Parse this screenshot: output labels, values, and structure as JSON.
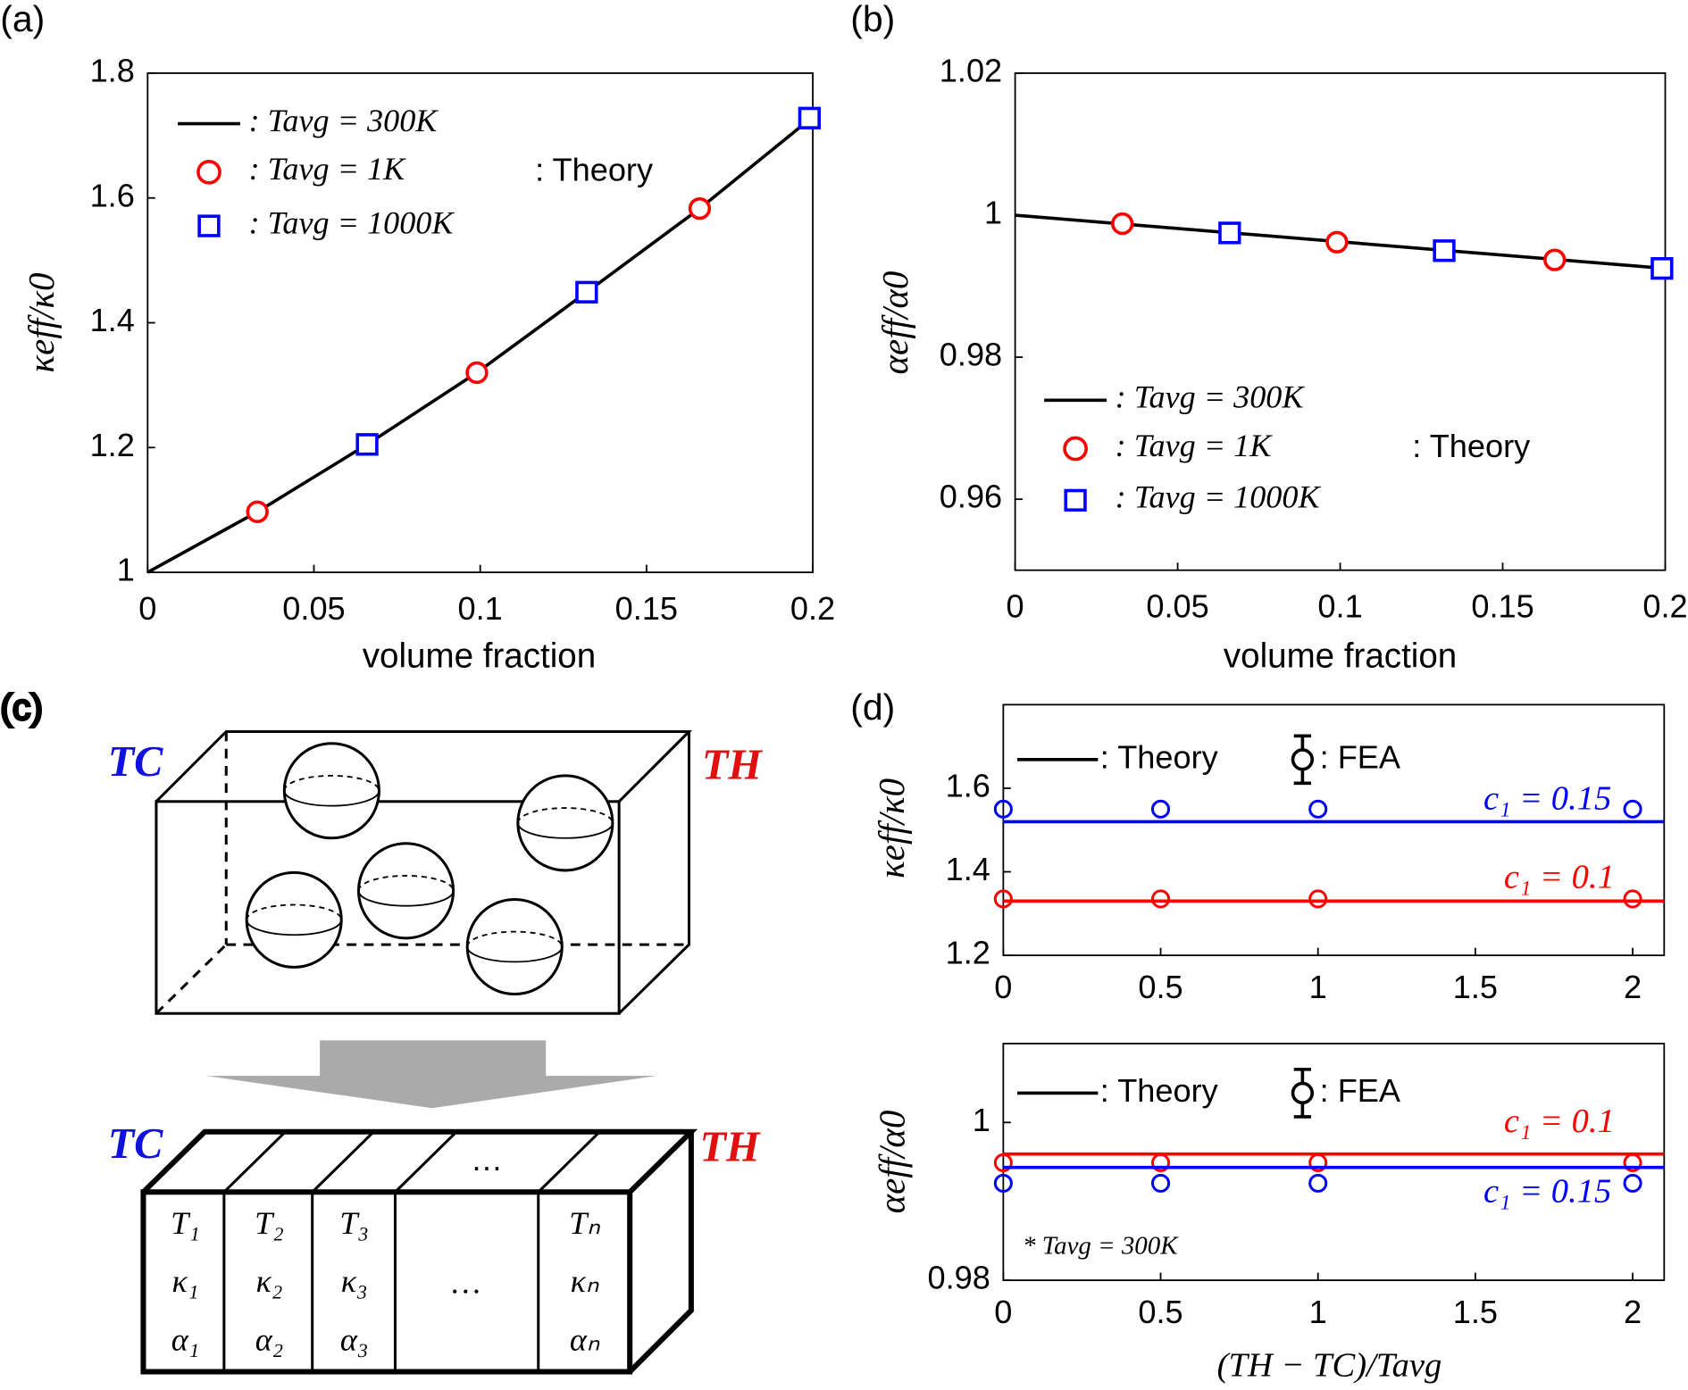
{
  "chart_data": [
    {
      "type": "line",
      "panel": "(a)",
      "xlabel": "volume fraction",
      "ylabel": "κeff/κ0",
      "xlim": [
        0,
        0.2
      ],
      "xticks": [
        0,
        0.05,
        0.1,
        0.15,
        0.2
      ],
      "ylim": [
        1,
        1.8
      ],
      "yticks": [
        1,
        1.2,
        1.4,
        1.6,
        1.8
      ],
      "series": [
        {
          "name": ": Tavg = 300K",
          "color": "#000000",
          "marker": "none",
          "x": [
            0,
            0.033,
            0.066,
            0.099,
            0.132,
            0.166,
            0.2
          ],
          "values": [
            1,
            1.097,
            1.205,
            1.32,
            1.449,
            1.583,
            1.73
          ]
        },
        {
          "name": ": Tavg = 1K",
          "color": "#ff0000",
          "marker": "o",
          "x": [
            0.033,
            0.099,
            0.166
          ],
          "values": [
            1.097,
            1.32,
            1.583
          ]
        },
        {
          "name": ": Tavg = 1000K",
          "color": "#0000ff",
          "marker": "s",
          "x": [
            0.066,
            0.132,
            0.199
          ],
          "values": [
            1.205,
            1.449,
            1.728
          ]
        }
      ],
      "note": ": Theory"
    },
    {
      "type": "line",
      "panel": "(b)",
      "xlabel": "volume fraction",
      "ylabel": "αeff/α0",
      "xlim": [
        0,
        0.2
      ],
      "xticks": [
        0,
        0.05,
        0.1,
        0.15,
        0.2
      ],
      "ylim": [
        0.95,
        1.02
      ],
      "yticks": [
        0.96,
        0.98,
        1,
        1.02
      ],
      "series": [
        {
          "name": ": Tavg = 300K",
          "color": "#000000",
          "marker": "none",
          "x": [
            0,
            0.2
          ],
          "values": [
            1,
            0.9925
          ]
        },
        {
          "name": ": Tavg = 1K",
          "color": "#ff0000",
          "marker": "o",
          "x": [
            0.033,
            0.099,
            0.166
          ],
          "values": [
            0.9988,
            0.9962,
            0.9937
          ]
        },
        {
          "name": ": Tavg = 1000K",
          "color": "#0000ff",
          "marker": "s",
          "x": [
            0.066,
            0.132,
            0.199
          ],
          "values": [
            0.9975,
            0.995,
            0.9925
          ]
        }
      ],
      "note": ": Theory"
    },
    {
      "type": "scatter",
      "panel": "(d)",
      "ylabel": "κeff/κ0",
      "xlim": [
        0,
        2.1
      ],
      "xticks": [
        0,
        0.5,
        1,
        1.5,
        2
      ],
      "ylim": [
        1.2,
        1.8
      ],
      "yticks": [
        1.2,
        1.4,
        1.6
      ],
      "legend": [
        ": Theory",
        ": FEA"
      ],
      "series": [
        {
          "name": "c₁ = 0.15",
          "color": "#0000ff",
          "x": [
            0,
            0.5,
            1,
            2
          ],
          "values": [
            1.55,
            1.55,
            1.55,
            1.55
          ],
          "theory": 1.52
        },
        {
          "name": "c₁ = 0.1",
          "color": "#ff0000",
          "x": [
            0,
            0.5,
            1,
            2
          ],
          "values": [
            1.335,
            1.335,
            1.335,
            1.335
          ],
          "theory": 1.33
        }
      ]
    },
    {
      "type": "scatter",
      "xlabel": "(TH − TC)/Tavg",
      "ylabel": "αeff/α0",
      "xlim": [
        0,
        2.1
      ],
      "xticks": [
        0,
        0.5,
        1,
        1.5,
        2
      ],
      "ylim": [
        0.98,
        1.01
      ],
      "yticks": [
        0.98,
        1
      ],
      "legend": [
        ": Theory",
        ": FEA"
      ],
      "series": [
        {
          "name": "c₁ = 0.1",
          "color": "#ff0000",
          "x": [
            0,
            0.5,
            1,
            2
          ],
          "values": [
            0.9949,
            0.9949,
            0.9949,
            0.9949
          ],
          "theory": 0.996
        },
        {
          "name": "c₁ = 0.15",
          "color": "#0000ff",
          "x": [
            0,
            0.5,
            1,
            2
          ],
          "values": [
            0.9923,
            0.9923,
            0.9923,
            0.9923
          ],
          "theory": 0.9943
        }
      ],
      "note": "* Tavg = 300K"
    }
  ],
  "diagram": {
    "panel": "(c)",
    "cold": "TC",
    "hot": "TH",
    "ellipsis": "…",
    "cells": [
      [
        "T₁",
        "κ₁",
        "α₁"
      ],
      [
        "T₂",
        "κ₂",
        "α₂"
      ],
      [
        "T₃",
        "κ₃",
        "α₃"
      ],
      [
        "…"
      ],
      [
        "Tₙ",
        "κₙ",
        "αₙ"
      ]
    ]
  }
}
